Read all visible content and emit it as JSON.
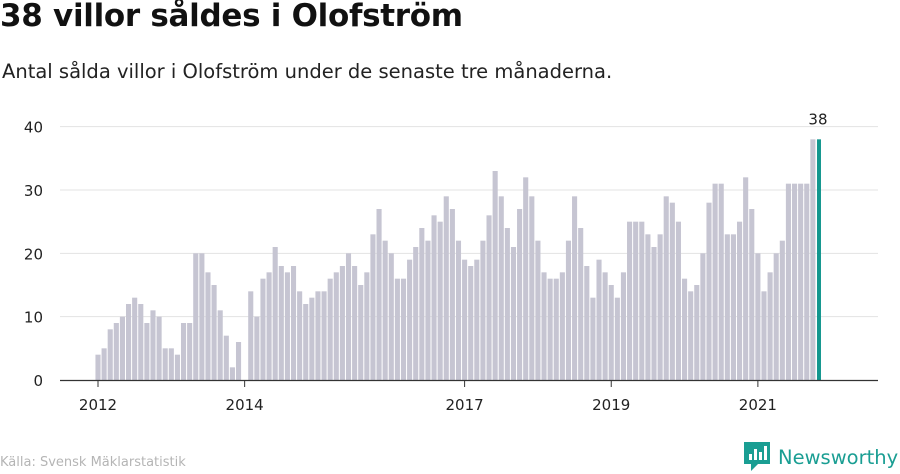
{
  "title": "38 villor såldes i Olofström",
  "subtitle": "Antal sålda villor i Olofström under de senaste tre månaderna.",
  "source": "Källa: Svensk Mäklarstatistik",
  "brand": {
    "name": "Newsworthy",
    "logo_icon": "newsworthy-logo-icon"
  },
  "colors": {
    "bar": "#c6c5d2",
    "highlight": "#13968e",
    "grid": "#e3e3e3",
    "axis": "#333333",
    "text": "#222222"
  },
  "chart_data": {
    "type": "bar",
    "ylim": [
      0,
      42
    ],
    "yticks": [
      0,
      10,
      20,
      30,
      40
    ],
    "grid": true,
    "xtick_labels": [
      {
        "label": "2012",
        "index": 0
      },
      {
        "label": "2014",
        "index": 24
      },
      {
        "label": "2017",
        "index": 60
      },
      {
        "label": "2019",
        "index": 84
      },
      {
        "label": "2021",
        "index": 108
      }
    ],
    "highlight_index": 118,
    "highlight_label": "38",
    "values": [
      4,
      5,
      8,
      9,
      10,
      12,
      13,
      12,
      9,
      11,
      10,
      5,
      5,
      4,
      9,
      9,
      20,
      20,
      17,
      15,
      11,
      7,
      2,
      6,
      0,
      14,
      10,
      16,
      17,
      21,
      18,
      17,
      18,
      14,
      12,
      13,
      14,
      14,
      16,
      17,
      18,
      20,
      18,
      15,
      17,
      23,
      27,
      22,
      20,
      16,
      16,
      19,
      21,
      24,
      22,
      26,
      25,
      29,
      27,
      22,
      19,
      18,
      19,
      22,
      26,
      33,
      29,
      24,
      21,
      27,
      32,
      29,
      22,
      17,
      16,
      16,
      17,
      22,
      29,
      24,
      18,
      13,
      19,
      17,
      15,
      13,
      17,
      25,
      25,
      25,
      23,
      21,
      23,
      29,
      28,
      25,
      16,
      14,
      15,
      20,
      28,
      31,
      31,
      23,
      23,
      25,
      32,
      27,
      20,
      14,
      17,
      20,
      22,
      31,
      31,
      31,
      31,
      38,
      38
    ]
  }
}
